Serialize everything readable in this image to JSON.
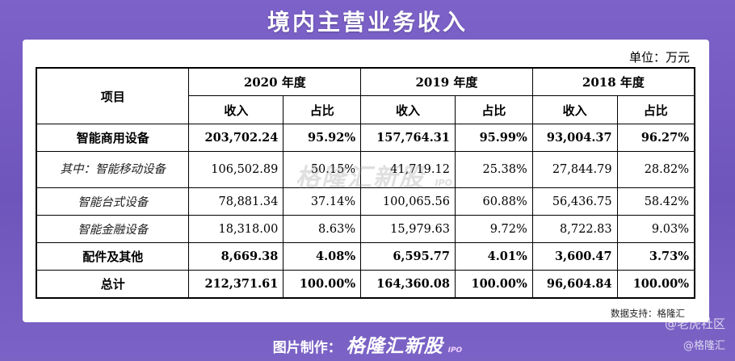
{
  "title": "境内主营业务收入",
  "unit": "单位：万元",
  "table": {
    "item_header": "项目",
    "years": [
      "2020 年度",
      "2019 年度",
      "2018 年度"
    ],
    "sub_headers": [
      "收入",
      "占比"
    ],
    "rows": [
      {
        "item": "智能商用设备",
        "values": [
          "203,702.24",
          "95.92%",
          "157,764.31",
          "95.99%",
          "93,004.37",
          "96.27%"
        ]
      },
      {
        "item": "其中：智能移动设备",
        "values": [
          "106,502.89",
          "50.15%",
          "41,719.12",
          "25.38%",
          "27,844.79",
          "28.82%"
        ]
      },
      {
        "item": "智能台式设备",
        "values": [
          "78,881.34",
          "37.14%",
          "100,065.56",
          "60.88%",
          "56,436.75",
          "58.42%"
        ]
      },
      {
        "item": "智能金融设备",
        "values": [
          "18,318.00",
          "8.63%",
          "15,979.63",
          "9.72%",
          "8,722.83",
          "9.03%"
        ]
      },
      {
        "item": "配件及其他",
        "values": [
          "8,669.38",
          "4.08%",
          "6,595.77",
          "4.01%",
          "3,600.47",
          "3.73%"
        ]
      },
      {
        "item": "总计",
        "values": [
          "212,371.61",
          "100.00%",
          "164,360.08",
          "100.00%",
          "96,604.84",
          "100.00%"
        ]
      }
    ]
  },
  "watermark": {
    "text": "格隆汇新股",
    "tag": "IPO"
  },
  "source": "数据支持：格隆汇",
  "footer": {
    "label": "图片制作：",
    "brand": "格隆汇新股",
    "tag": "IPO"
  },
  "corner": {
    "line1": "@老虎社区",
    "line2": "@格隆汇"
  }
}
